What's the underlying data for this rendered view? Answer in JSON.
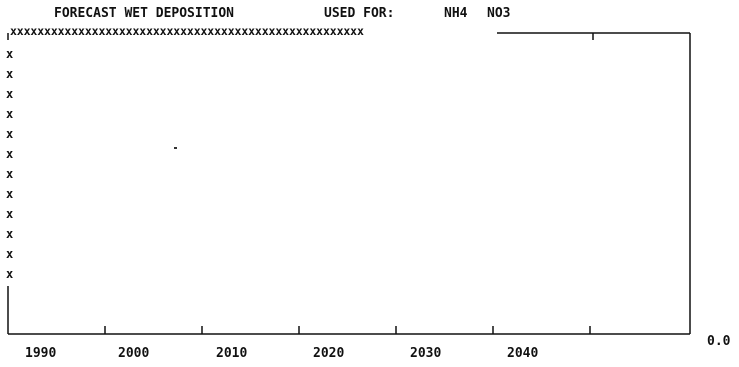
{
  "header": {
    "title": "FORECAST WET DEPOSITION",
    "used_for_label": "USED FOR:",
    "species": [
      "NH4",
      "NO3"
    ]
  },
  "plot": {
    "top_marker_row": "xxxxxxxxxxxxxxxxxxxxxxxxxxxxxxxxxxxxxxxxxxxxxxxxxxxx",
    "left_marker_column": [
      "x",
      "x",
      "x",
      "x",
      "x",
      "x",
      "x",
      "x",
      "x",
      "x",
      "x",
      "x"
    ],
    "y_min_label": "0.0"
  },
  "x_axis": {
    "tick_labels": [
      "1990",
      "2000",
      "2010",
      "2020",
      "2030",
      "2040"
    ]
  },
  "colors": {
    "ink": "#111111",
    "background": "#ffffff"
  }
}
